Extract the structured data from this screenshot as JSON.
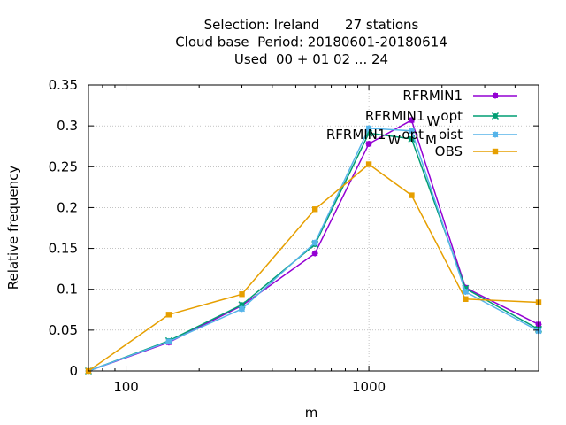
{
  "chart_data": {
    "type": "line",
    "title_lines": [
      "Selection: Ireland      27 stations",
      "Cloud base  Period: 20180601-20180614",
      "Used  00 + 01 02 ... 24"
    ],
    "xlabel": "m",
    "ylabel": "Relative frequency",
    "x_scale": "log",
    "xlim": [
      70,
      5000
    ],
    "ylim": [
      0,
      0.35
    ],
    "x_ticks": [
      100,
      1000
    ],
    "x_tick_labels": [
      "100",
      "1000"
    ],
    "y_ticks": [
      0,
      0.05,
      0.1,
      0.15,
      0.2,
      0.25,
      0.3,
      0.35
    ],
    "y_tick_labels": [
      "0",
      "0.05",
      "0.1",
      "0.15",
      "0.2",
      "0.25",
      "0.3",
      "0.35"
    ],
    "grid": true,
    "legend_position": "top-right",
    "x": [
      70,
      150,
      300,
      600,
      1000,
      1500,
      2500,
      5000
    ],
    "series": [
      {
        "name": "RFRMIN1",
        "legend_parts": [
          "RFRMIN1",
          "",
          ""
        ],
        "color": "#9400d3",
        "marker": "plus",
        "values": [
          0.0,
          0.035,
          0.08,
          0.144,
          0.278,
          0.307,
          0.102,
          0.057
        ]
      },
      {
        "name": "RFRMIN1_W opt",
        "legend_parts": [
          "RFRMIN1",
          "W",
          "opt"
        ],
        "color": "#009e73",
        "marker": "cross",
        "values": [
          0.0,
          0.037,
          0.081,
          0.155,
          0.291,
          0.284,
          0.101,
          0.051
        ]
      },
      {
        "name": "RFRMIN1_W opt_M oist",
        "legend_parts": [
          "RFRMIN1",
          "W",
          "opt",
          "M",
          "oist"
        ],
        "color": "#56b4e9",
        "marker": "star",
        "values": [
          0.0,
          0.036,
          0.076,
          0.157,
          0.297,
          0.294,
          0.097,
          0.049
        ]
      },
      {
        "name": "OBS",
        "legend_parts": [
          "OBS",
          "",
          ""
        ],
        "color": "#e69f00",
        "marker": "square",
        "values": [
          0.0,
          0.069,
          0.094,
          0.198,
          0.253,
          0.215,
          0.088,
          0.084
        ]
      }
    ]
  }
}
